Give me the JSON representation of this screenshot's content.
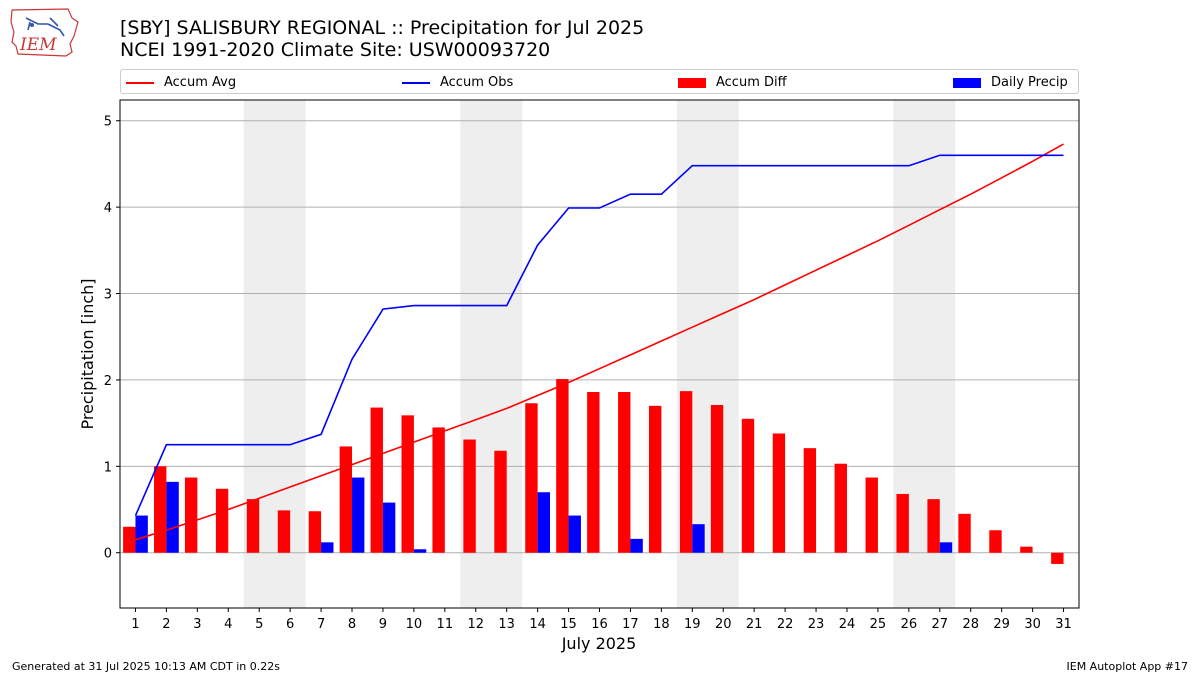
{
  "header": {
    "title": "[SBY] SALISBURY REGIONAL :: Precipitation for Jul 2025",
    "subtitle": "NCEI 1991-2020 Climate Site: USW00093720",
    "logo_text": "IEM"
  },
  "footer": {
    "left": "Generated at 31 Jul 2025 10:13 AM CDT in 0.22s",
    "right": "IEM Autoplot App #17"
  },
  "colors": {
    "accum_avg": "#ff0000",
    "accum_obs": "#0000ff",
    "accum_diff": "#ff0000",
    "daily_precip": "#0000ff",
    "weekend_shade": "#eeeeee",
    "grid": "#b0b0b0"
  },
  "chart_data": {
    "type": "bar",
    "title": "[SBY] SALISBURY REGIONAL :: Precipitation for Jul 2025",
    "xlabel": "July 2025",
    "ylabel": "Precipitation [inch]",
    "ylim": [
      -0.64,
      5.24
    ],
    "yticks": [
      0,
      1,
      2,
      3,
      4,
      5
    ],
    "grid": "horizontal",
    "legend_position": "top",
    "categories": [
      1,
      2,
      3,
      4,
      5,
      6,
      7,
      8,
      9,
      10,
      11,
      12,
      13,
      14,
      15,
      16,
      17,
      18,
      19,
      20,
      21,
      22,
      23,
      24,
      25,
      26,
      27,
      28,
      29,
      30,
      31
    ],
    "shaded_days": [
      [
        5,
        6
      ],
      [
        12,
        13
      ],
      [
        19,
        20
      ],
      [
        26,
        27
      ]
    ],
    "series": [
      {
        "name": "Accum Avg",
        "type": "line",
        "values": [
          0.15,
          0.26,
          0.38,
          0.5,
          0.63,
          0.76,
          0.89,
          1.02,
          1.15,
          1.28,
          1.41,
          1.54,
          1.67,
          1.82,
          1.97,
          2.13,
          2.29,
          2.45,
          2.61,
          2.77,
          2.93,
          3.1,
          3.27,
          3.44,
          3.61,
          3.79,
          3.97,
          4.15,
          4.34,
          4.53,
          4.73
        ]
      },
      {
        "name": "Accum Obs",
        "type": "line",
        "values": [
          0.43,
          1.25,
          1.25,
          1.25,
          1.25,
          1.25,
          1.37,
          2.24,
          2.82,
          2.86,
          2.86,
          2.86,
          2.86,
          3.56,
          3.99,
          3.99,
          4.15,
          4.15,
          4.48,
          4.48,
          4.48,
          4.48,
          4.48,
          4.48,
          4.48,
          4.48,
          4.6,
          4.6,
          4.6,
          4.6,
          4.6
        ]
      },
      {
        "name": "Accum Diff",
        "type": "bar",
        "values": [
          0.3,
          1.0,
          0.87,
          0.74,
          0.62,
          0.49,
          0.48,
          1.23,
          1.68,
          1.59,
          1.45,
          1.31,
          1.18,
          1.73,
          2.01,
          1.86,
          1.86,
          1.7,
          1.87,
          1.71,
          1.55,
          1.38,
          1.21,
          1.03,
          0.87,
          0.68,
          0.62,
          0.45,
          0.26,
          0.07,
          -0.13
        ]
      },
      {
        "name": "Daily Precip",
        "type": "bar",
        "values": [
          0.43,
          0.82,
          0,
          0,
          0,
          0,
          0.12,
          0.87,
          0.58,
          0.04,
          0,
          0,
          0,
          0.7,
          0.43,
          0,
          0.16,
          0,
          0.33,
          0,
          0,
          0,
          0,
          0,
          0,
          0,
          0.12,
          0,
          0,
          0,
          0
        ]
      }
    ]
  }
}
